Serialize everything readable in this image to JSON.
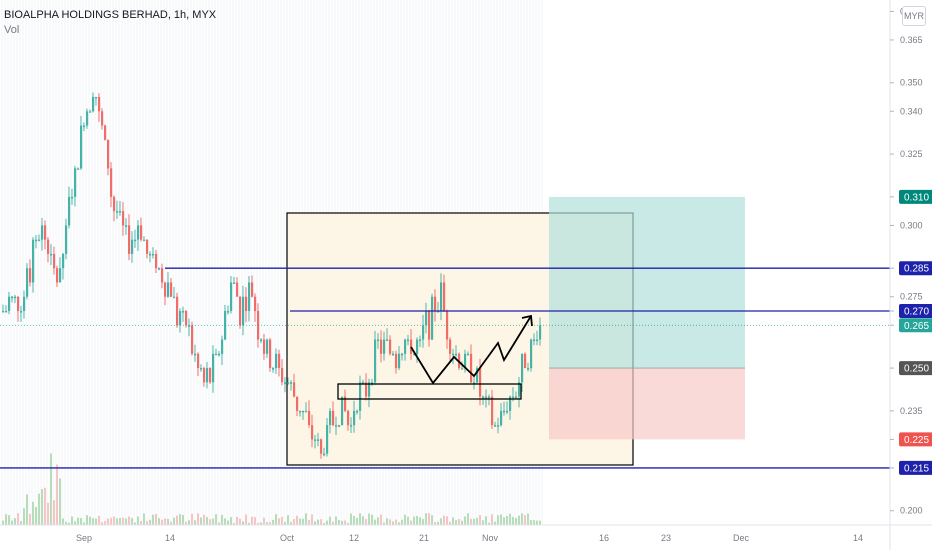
{
  "header": {
    "title": "BIOALPHA HOLDINGS BERHAD, 1h, MYX",
    "volume_label": "Vol"
  },
  "currency_button": "MYR",
  "colors": {
    "up": "#26a69a",
    "down": "#ef5350",
    "level_line": "#1e22aa",
    "box_fill": "#fdf6e7",
    "profit_zone": "#b2dfdb",
    "loss_zone": "#f8c9c9"
  },
  "chart_data": {
    "type": "candlestick",
    "title": "BIOALPHA HOLDINGS BERHAD, 1h, MYX",
    "y_axis": {
      "side": "right",
      "ylim": [
        0.195,
        0.379
      ],
      "ticks": [
        "0.375",
        "0.365",
        "0.350",
        "0.340",
        "0.325",
        "0.310",
        "0.300",
        "0.285",
        "0.275",
        "0.270",
        "0.265",
        "0.250",
        "0.235",
        "0.225",
        "0.215",
        "0.200"
      ]
    },
    "x_axis": {
      "ticks": [
        "Sep",
        "14",
        "Oct",
        "12",
        "21",
        "Nov",
        "16",
        "23",
        "Dec",
        "14"
      ]
    },
    "price_tags": [
      {
        "value": "0.310",
        "color": "#00897b"
      },
      {
        "value": "0.285",
        "color": "#1e22aa"
      },
      {
        "value": "0.270",
        "color": "#1e22aa"
      },
      {
        "value": "0.265",
        "color": "#26a69a"
      },
      {
        "value": "0.250",
        "color": "#555555"
      },
      {
        "value": "0.225",
        "color": "#ef5350"
      },
      {
        "value": "0.215",
        "color": "#1e22aa"
      }
    ],
    "horizontal_levels": [
      0.285,
      0.27,
      0.215
    ],
    "current_price": 0.265,
    "position": {
      "entry": 0.25,
      "target": 0.31,
      "stop": 0.225
    },
    "approx_path": [
      [
        0,
        0.27
      ],
      [
        2,
        0.275
      ],
      [
        3,
        0.285
      ],
      [
        4,
        0.3
      ],
      [
        5,
        0.29
      ],
      [
        6,
        0.28
      ],
      [
        7,
        0.3
      ],
      [
        8,
        0.32
      ],
      [
        9,
        0.34
      ],
      [
        10,
        0.35
      ],
      [
        11,
        0.33
      ],
      [
        12,
        0.31
      ],
      [
        13,
        0.3
      ],
      [
        14,
        0.295
      ],
      [
        15,
        0.3
      ],
      [
        16,
        0.29
      ],
      [
        17,
        0.285
      ],
      [
        18,
        0.28
      ],
      [
        19,
        0.27
      ],
      [
        20,
        0.265
      ],
      [
        21,
        0.255
      ],
      [
        22,
        0.245
      ],
      [
        23,
        0.25
      ],
      [
        24,
        0.26
      ],
      [
        25,
        0.28
      ],
      [
        26,
        0.27
      ],
      [
        27,
        0.28
      ],
      [
        28,
        0.265
      ],
      [
        29,
        0.255
      ],
      [
        30,
        0.25
      ],
      [
        31,
        0.245
      ],
      [
        32,
        0.24
      ],
      [
        33,
        0.235
      ],
      [
        34,
        0.225
      ],
      [
        35,
        0.22
      ],
      [
        36,
        0.23
      ],
      [
        37,
        0.235
      ],
      [
        38,
        0.23
      ],
      [
        39,
        0.24
      ],
      [
        40,
        0.245
      ],
      [
        41,
        0.255
      ],
      [
        42,
        0.26
      ],
      [
        43,
        0.255
      ],
      [
        44,
        0.26
      ],
      [
        45,
        0.255
      ],
      [
        46,
        0.26
      ],
      [
        47,
        0.27
      ],
      [
        48,
        0.275
      ],
      [
        49,
        0.26
      ],
      [
        50,
        0.255
      ],
      [
        51,
        0.25
      ],
      [
        52,
        0.245
      ],
      [
        53,
        0.235
      ],
      [
        54,
        0.23
      ],
      [
        55,
        0.235
      ],
      [
        56,
        0.24
      ],
      [
        57,
        0.25
      ],
      [
        58,
        0.26
      ],
      [
        59,
        0.265
      ]
    ]
  }
}
